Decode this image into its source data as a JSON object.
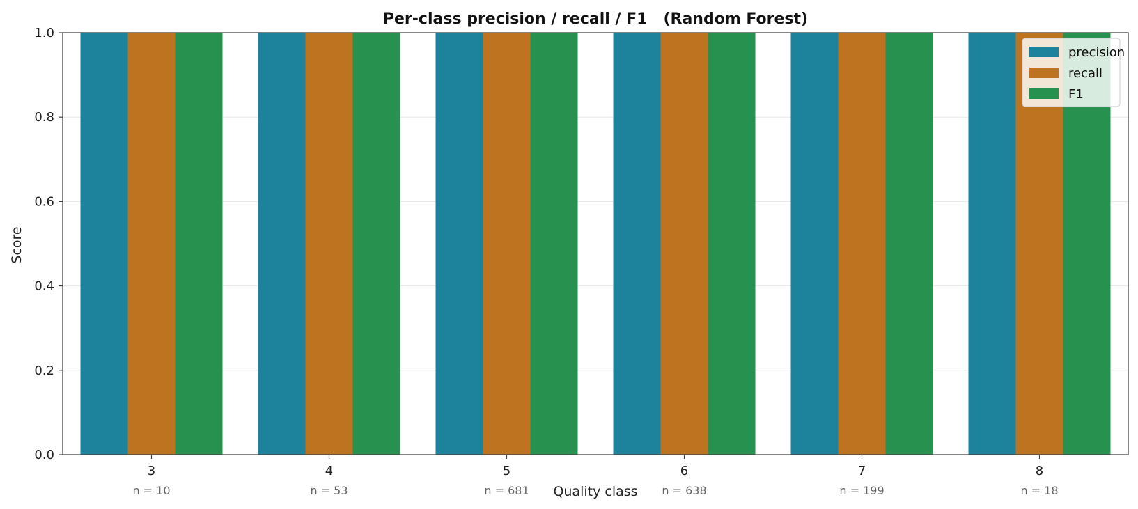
{
  "chart_data": {
    "type": "bar",
    "title": "Per-class precision / recall / F1   (Random Forest)",
    "xlabel": "Quality class",
    "ylabel": "Score",
    "ylim": [
      0,
      1
    ],
    "yticks": [
      "0.0",
      "0.2",
      "0.4",
      "0.6",
      "0.8",
      "1.0"
    ],
    "grid": "y",
    "legend_position": "top-right",
    "categories": [
      "3",
      "4",
      "5",
      "6",
      "7",
      "8"
    ],
    "support_labels": [
      "n = 10",
      "n = 53",
      "n = 681",
      "n = 638",
      "n = 199",
      "n = 18"
    ],
    "series": [
      {
        "name": "precision",
        "color": "#1d829b",
        "values": [
          1.0,
          1.0,
          1.0,
          1.0,
          1.0,
          1.0
        ]
      },
      {
        "name": "recall",
        "color": "#bd7320",
        "values": [
          1.0,
          1.0,
          1.0,
          1.0,
          1.0,
          1.0
        ]
      },
      {
        "name": "F1",
        "color": "#27914f",
        "values": [
          1.0,
          1.0,
          1.0,
          1.0,
          1.0,
          1.0
        ]
      }
    ]
  }
}
